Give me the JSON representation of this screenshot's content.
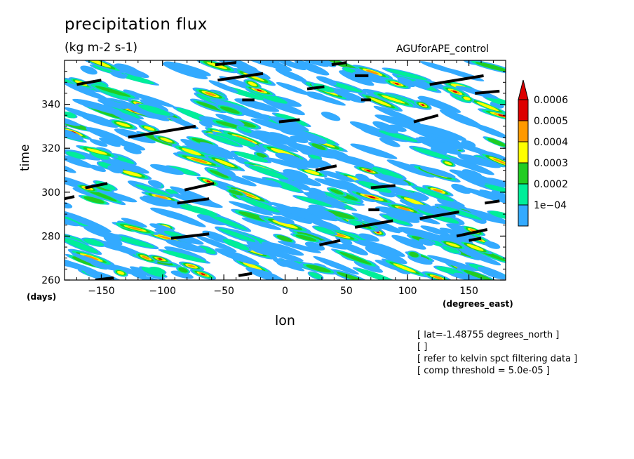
{
  "title": "precipitation flux",
  "units": "(kg m-2 s-1)",
  "dataset": "AGUforAPE_control",
  "time_unit": "(days)",
  "lon_unit": "(degrees_east)",
  "info": [
    "[ lat=-1.48755 degrees_north ]",
    "[  ]",
    "[ refer to kelvin spct filtering data ]",
    "[ comp threshold = 5.0e-05 ]"
  ],
  "chart_data": {
    "type": "heatmap",
    "title": "precipitation flux",
    "xlabel": "lon",
    "ylabel": "time",
    "xlim": [
      -180,
      180
    ],
    "ylim": [
      260,
      360
    ],
    "xticks": [
      -150,
      -100,
      -50,
      0,
      50,
      100,
      150
    ],
    "yticks": [
      260,
      280,
      300,
      320,
      340
    ],
    "colorbar": {
      "levels": [
        0.0001,
        0.0002,
        0.0003,
        0.0004,
        0.0005,
        0.0006
      ],
      "labels": [
        "1e-04",
        "0.0002",
        "0.0003",
        "0.0004",
        "0.0005",
        "0.0006"
      ],
      "colors": [
        "#33aaff",
        "#00ee99",
        "#22cc22",
        "#ffff00",
        "#ff9900",
        "#dd0000"
      ]
    },
    "kelvin_segments": [
      {
        "x": [
          -170,
          -150
        ],
        "y": [
          349,
          351
        ]
      },
      {
        "x": [
          -128,
          -73
        ],
        "y": [
          325,
          330
        ]
      },
      {
        "x": [
          -163,
          -145
        ],
        "y": [
          302,
          304
        ]
      },
      {
        "x": [
          -180,
          -172
        ],
        "y": [
          297,
          298
        ]
      },
      {
        "x": [
          -82,
          -58
        ],
        "y": [
          301,
          304
        ]
      },
      {
        "x": [
          -88,
          -62
        ],
        "y": [
          295,
          297
        ]
      },
      {
        "x": [
          -93,
          -62
        ],
        "y": [
          279,
          281
        ]
      },
      {
        "x": [
          -155,
          -140
        ],
        "y": [
          260,
          261
        ]
      },
      {
        "x": [
          -38,
          -27
        ],
        "y": [
          262,
          263
        ]
      },
      {
        "x": [
          -55,
          -18
        ],
        "y": [
          351,
          354
        ]
      },
      {
        "x": [
          -57,
          -40
        ],
        "y": [
          358,
          359
        ]
      },
      {
        "x": [
          -35,
          -25
        ],
        "y": [
          342,
          342
        ]
      },
      {
        "x": [
          -5,
          12
        ],
        "y": [
          332,
          333
        ]
      },
      {
        "x": [
          18,
          32
        ],
        "y": [
          347,
          348
        ]
      },
      {
        "x": [
          25,
          42
        ],
        "y": [
          310,
          312
        ]
      },
      {
        "x": [
          28,
          45
        ],
        "y": [
          276,
          278
        ]
      },
      {
        "x": [
          38,
          50
        ],
        "y": [
          358,
          359
        ]
      },
      {
        "x": [
          57,
          68
        ],
        "y": [
          353,
          353
        ]
      },
      {
        "x": [
          62,
          70
        ],
        "y": [
          342,
          342
        ]
      },
      {
        "x": [
          57,
          88
        ],
        "y": [
          284,
          287
        ]
      },
      {
        "x": [
          70,
          90
        ],
        "y": [
          302,
          303
        ]
      },
      {
        "x": [
          68,
          77
        ],
        "y": [
          292,
          292
        ]
      },
      {
        "x": [
          105,
          125
        ],
        "y": [
          332,
          335
        ]
      },
      {
        "x": [
          118,
          162
        ],
        "y": [
          349,
          353
        ]
      },
      {
        "x": [
          155,
          175
        ],
        "y": [
          345,
          346
        ]
      },
      {
        "x": [
          110,
          142
        ],
        "y": [
          288,
          291
        ]
      },
      {
        "x": [
          140,
          165
        ],
        "y": [
          280,
          283
        ]
      },
      {
        "x": [
          150,
          160
        ],
        "y": [
          278,
          279
        ]
      },
      {
        "x": [
          163,
          175
        ],
        "y": [
          295,
          296
        ]
      }
    ]
  }
}
